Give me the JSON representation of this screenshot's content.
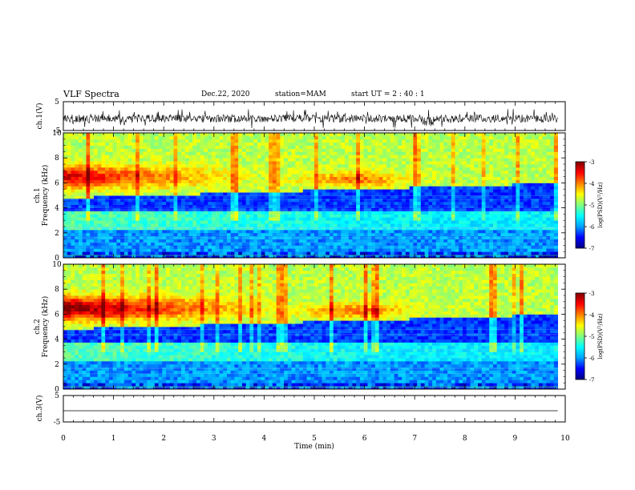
{
  "header": {
    "title": "VLF Spectra",
    "date": "Dec.22, 2020",
    "station": "station=MAM",
    "start": "start  UT =   2 : 40 : 1"
  },
  "colors": {
    "scale": [
      "#000080",
      "#0000ff",
      "#00a0ff",
      "#00ffff",
      "#80ff80",
      "#ffff00",
      "#ff8000",
      "#ff0000",
      "#800000"
    ]
  },
  "chart_data": [
    {
      "type": "line",
      "panel": "waveform-ch1",
      "ylabel": "ch.1(V)",
      "ylim": [
        -5,
        5
      ],
      "yticks": [
        "5",
        "-5"
      ],
      "xlim": [
        0,
        10
      ]
    },
    {
      "type": "heatmap",
      "panel": "spectrogram-ch1",
      "ylabel_channel": "ch.1",
      "ylabel": "Frequency (kHz)",
      "ylim": [
        0,
        10
      ],
      "yticks": [
        "0",
        "2",
        "4",
        "6",
        "8",
        "10"
      ],
      "xlim": [
        0,
        10
      ],
      "colorbar": {
        "label": "log(PSD)(V²/Hz)",
        "ticks": [
          "-3",
          "-4",
          "-5",
          "-6",
          "-7"
        ],
        "range": [
          -7,
          -3
        ]
      }
    },
    {
      "type": "heatmap",
      "panel": "spectrogram-ch2",
      "ylabel_channel": "ch.2",
      "ylabel": "Frequency (kHz)",
      "ylim": [
        0,
        10
      ],
      "yticks": [
        "0",
        "2",
        "4",
        "6",
        "8",
        "10"
      ],
      "xlim": [
        0,
        10
      ],
      "colorbar": {
        "label": "log(PSD)(V²/Hz)",
        "ticks": [
          "-3",
          "-4",
          "-5",
          "-6",
          "-7"
        ],
        "range": [
          -7,
          -3
        ]
      }
    },
    {
      "type": "line",
      "panel": "waveform-ch3",
      "ylabel": "ch.3(V)",
      "ylim": [
        -5,
        5
      ],
      "yticks": [
        "5",
        "-5"
      ],
      "xlim": [
        0,
        10
      ],
      "xlabel": "Time (min)",
      "xticks": [
        "0",
        "1",
        "2",
        "3",
        "4",
        "5",
        "6",
        "7",
        "8",
        "9",
        "10"
      ]
    }
  ]
}
